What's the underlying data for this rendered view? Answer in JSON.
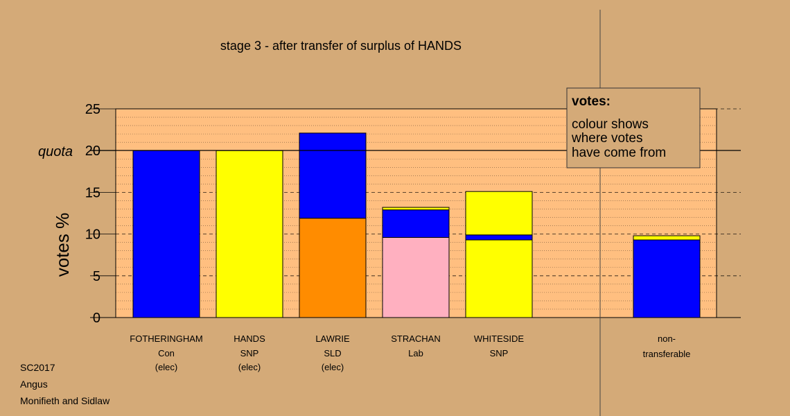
{
  "chart_data": {
    "type": "bar",
    "title": "stage 3 - after transfer of surplus of HANDS",
    "ylabel": "votes %",
    "ylim": [
      0,
      25
    ],
    "yticks": [
      0,
      5,
      10,
      15,
      20,
      25
    ],
    "quota": 20,
    "quota_label": "quota",
    "grid": true,
    "legend_box": {
      "title": "votes:",
      "lines": [
        "colour shows",
        "where votes",
        "have come from"
      ],
      "placement": "top-right"
    },
    "colors": {
      "Con": "#0000ff",
      "SNP": "#ffff00",
      "SLD": "#ff8c00",
      "Lab": "#ffb0c0",
      "plot_bg": "#ffbf80",
      "page_bg": "#d4aa78"
    },
    "categories": [
      {
        "name": "FOTHERINGHAM",
        "party": "Con",
        "status": "(elec)",
        "segments": [
          {
            "from": "Con",
            "value": 20.0
          }
        ]
      },
      {
        "name": "HANDS",
        "party": "SNP",
        "status": "(elec)",
        "segments": [
          {
            "from": "SNP",
            "value": 20.0
          }
        ]
      },
      {
        "name": "LAWRIE",
        "party": "SLD",
        "status": "(elec)",
        "segments": [
          {
            "from": "SLD",
            "value": 11.9
          },
          {
            "from": "Con",
            "value": 10.2
          }
        ]
      },
      {
        "name": "STRACHAN",
        "party": "Lab",
        "status": "",
        "segments": [
          {
            "from": "Lab",
            "value": 9.6
          },
          {
            "from": "Con",
            "value": 3.3
          },
          {
            "from": "SNP",
            "value": 0.3
          }
        ]
      },
      {
        "name": "WHITESIDE",
        "party": "SNP",
        "status": "",
        "segments": [
          {
            "from": "SNP",
            "value": 9.3
          },
          {
            "from": "Con",
            "value": 0.6
          },
          {
            "from": "SNP",
            "value": 5.2
          }
        ]
      }
    ],
    "nontransferable": {
      "label_line1": "non-",
      "label_line2": "transferable",
      "segments": [
        {
          "from": "Con",
          "value": 9.3
        },
        {
          "from": "SNP",
          "value": 0.5
        }
      ]
    }
  },
  "info": {
    "election": "SC2017",
    "council": "Angus",
    "ward": "Monifieth and Sidlaw"
  }
}
